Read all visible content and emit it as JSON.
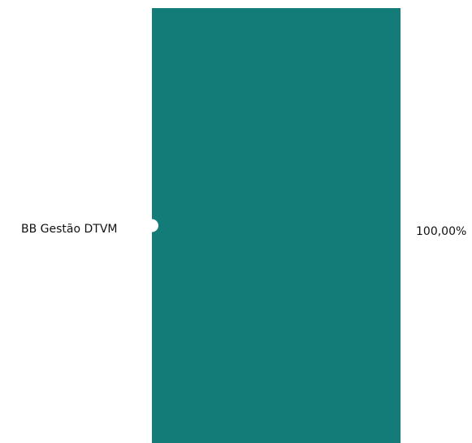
{
  "chart_data": {
    "type": "bar",
    "orientation": "stacked-100-percent",
    "categories": [
      "BB Gestão DTVM"
    ],
    "values": [
      100.0
    ],
    "value_labels": [
      "100,00%"
    ],
    "ylim": [
      0,
      100
    ],
    "grid": false,
    "legend": "none",
    "colors": {
      "bar": "#137b78",
      "marker": "#ffffff"
    }
  }
}
